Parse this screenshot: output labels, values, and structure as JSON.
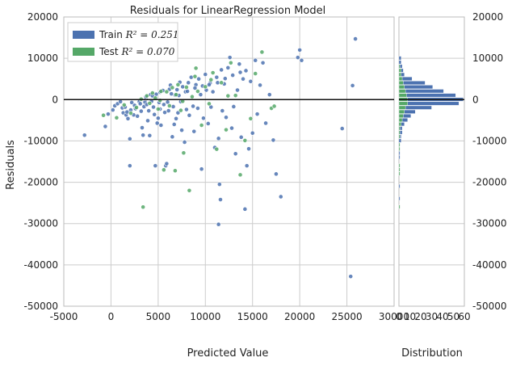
{
  "chart_data": {
    "type": "scatter",
    "title": "Residuals for LinearRegression Model",
    "xlabel": "Predicted Value",
    "ylabel": "Residuals",
    "xlim": [
      -5000,
      30000
    ],
    "ylim": [
      -50000,
      20000
    ],
    "x_ticks": [
      -5000,
      0,
      5000,
      10000,
      15000,
      20000,
      25000,
      30000
    ],
    "y_ticks": [
      -50000,
      -40000,
      -30000,
      -20000,
      -10000,
      0,
      10000,
      20000
    ],
    "grid": true,
    "legend_position": "top-left",
    "legend": [
      {
        "label": "Train",
        "r2_text": "R² = 0.251",
        "color": "#4c72b0"
      },
      {
        "label": "Test",
        "r2_text": "R² = 0.070",
        "color": "#55a868"
      }
    ],
    "zero_line": 0,
    "series": [
      {
        "name": "Train",
        "color": "#4c72b0",
        "points": [
          [
            -2800,
            -8600
          ],
          [
            -600,
            -6500
          ],
          [
            -300,
            -3500
          ],
          [
            200,
            -2500
          ],
          [
            400,
            -1500
          ],
          [
            700,
            -1000
          ],
          [
            1000,
            -500
          ],
          [
            1200,
            -2000
          ],
          [
            1300,
            -3200
          ],
          [
            1500,
            -1800
          ],
          [
            1600,
            -3700
          ],
          [
            1800,
            -4600
          ],
          [
            2000,
            -9500
          ],
          [
            2000,
            -16000
          ],
          [
            2100,
            -2500
          ],
          [
            2200,
            -700
          ],
          [
            2500,
            -1400
          ],
          [
            2600,
            -2200
          ],
          [
            2800,
            -4000
          ],
          [
            3000,
            -500
          ],
          [
            3100,
            -1000
          ],
          [
            3200,
            -2800
          ],
          [
            3300,
            -6800
          ],
          [
            3400,
            -8600
          ],
          [
            3500,
            -1700
          ],
          [
            3600,
            -600
          ],
          [
            3700,
            200
          ],
          [
            3800,
            -1200
          ],
          [
            4000,
            -2700
          ],
          [
            4100,
            -8700
          ],
          [
            4200,
            1200
          ],
          [
            4300,
            -400
          ],
          [
            4500,
            -1800
          ],
          [
            4600,
            -3600
          ],
          [
            4700,
            -16000
          ],
          [
            4800,
            1300
          ],
          [
            5000,
            -4500
          ],
          [
            5100,
            -700
          ],
          [
            5200,
            -2300
          ],
          [
            5300,
            -6200
          ],
          [
            5500,
            2200
          ],
          [
            5600,
            -1200
          ],
          [
            5700,
            -3100
          ],
          [
            5800,
            -16000
          ],
          [
            5900,
            -15500
          ],
          [
            6000,
            -600
          ],
          [
            6100,
            -2700
          ],
          [
            6200,
            2500
          ],
          [
            6300,
            3500
          ],
          [
            6500,
            -9000
          ],
          [
            6600,
            -1700
          ],
          [
            6800,
            1100
          ],
          [
            6900,
            -4600
          ],
          [
            7000,
            2400
          ],
          [
            7100,
            -3200
          ],
          [
            7300,
            4200
          ],
          [
            7400,
            -500
          ],
          [
            7500,
            -7400
          ],
          [
            7600,
            3100
          ],
          [
            7800,
            -10300
          ],
          [
            7900,
            1900
          ],
          [
            8000,
            -2400
          ],
          [
            8200,
            4100
          ],
          [
            8300,
            -3800
          ],
          [
            8500,
            5400
          ],
          [
            8700,
            -1600
          ],
          [
            8800,
            -7700
          ],
          [
            9000,
            3600
          ],
          [
            9200,
            -2100
          ],
          [
            9300,
            5000
          ],
          [
            9500,
            1200
          ],
          [
            9600,
            -16800
          ],
          [
            9800,
            -4500
          ],
          [
            10000,
            6100
          ],
          [
            10100,
            2300
          ],
          [
            10300,
            -5800
          ],
          [
            10500,
            4000
          ],
          [
            10600,
            -1800
          ],
          [
            10800,
            1900
          ],
          [
            11000,
            -11600
          ],
          [
            11200,
            5400
          ],
          [
            11400,
            -9400
          ],
          [
            11500,
            -20500
          ],
          [
            11600,
            -24200
          ],
          [
            11700,
            7200
          ],
          [
            11800,
            -2700
          ],
          [
            12000,
            3800
          ],
          [
            12200,
            -4300
          ],
          [
            12400,
            7700
          ],
          [
            12600,
            10200
          ],
          [
            12800,
            -6900
          ],
          [
            13000,
            -1700
          ],
          [
            13200,
            -13100
          ],
          [
            13400,
            2300
          ],
          [
            13600,
            8600
          ],
          [
            13800,
            -9100
          ],
          [
            14000,
            5000
          ],
          [
            14200,
            -26500
          ],
          [
            14400,
            -16000
          ],
          [
            14600,
            -11900
          ],
          [
            14800,
            4400
          ],
          [
            15000,
            -8100
          ],
          [
            15300,
            9500
          ],
          [
            15500,
            -3500
          ],
          [
            15800,
            3500
          ],
          [
            16100,
            8900
          ],
          [
            16400,
            -5700
          ],
          [
            16800,
            1200
          ],
          [
            17200,
            -9800
          ],
          [
            17500,
            -18000
          ],
          [
            18000,
            -23500
          ],
          [
            11400,
            -30200
          ],
          [
            20000,
            12000
          ],
          [
            20200,
            9500
          ],
          [
            19800,
            10200
          ],
          [
            24500,
            -7000
          ],
          [
            25400,
            -42800
          ],
          [
            25600,
            3400
          ],
          [
            25900,
            14700
          ],
          [
            3700,
            700
          ],
          [
            4400,
            900
          ],
          [
            5200,
            1800
          ],
          [
            6400,
            1400
          ],
          [
            7200,
            1000
          ],
          [
            8100,
            2000
          ],
          [
            8900,
            2800
          ],
          [
            9700,
            3300
          ],
          [
            10400,
            3600
          ],
          [
            11300,
            4100
          ],
          [
            12100,
            5100
          ],
          [
            12900,
            5900
          ],
          [
            13700,
            6600
          ],
          [
            14300,
            7000
          ],
          [
            1700,
            -3000
          ],
          [
            2400,
            -3700
          ],
          [
            3900,
            -5100
          ],
          [
            4900,
            -5700
          ],
          [
            6700,
            -6000
          ]
        ]
      },
      {
        "name": "Test",
        "color": "#55a868",
        "points": [
          [
            -800,
            -3800
          ],
          [
            600,
            -4400
          ],
          [
            1400,
            -1300
          ],
          [
            2100,
            -3300
          ],
          [
            2700,
            -1900
          ],
          [
            3200,
            100
          ],
          [
            3400,
            -26000
          ],
          [
            3800,
            900
          ],
          [
            4100,
            -900
          ],
          [
            4400,
            1600
          ],
          [
            4700,
            400
          ],
          [
            5000,
            -2300
          ],
          [
            5300,
            2000
          ],
          [
            5600,
            -17000
          ],
          [
            5900,
            1900
          ],
          [
            6200,
            -1500
          ],
          [
            6500,
            2900
          ],
          [
            6800,
            -17200
          ],
          [
            7100,
            3600
          ],
          [
            7400,
            -2600
          ],
          [
            7700,
            -12900
          ],
          [
            8000,
            3000
          ],
          [
            8300,
            -22000
          ],
          [
            8600,
            700
          ],
          [
            8900,
            5600
          ],
          [
            9200,
            2000
          ],
          [
            9600,
            -6200
          ],
          [
            10000,
            3100
          ],
          [
            10400,
            -1000
          ],
          [
            10800,
            6500
          ],
          [
            11200,
            -12000
          ],
          [
            11700,
            4100
          ],
          [
            12200,
            -7300
          ],
          [
            12700,
            8900
          ],
          [
            13200,
            1000
          ],
          [
            13700,
            -18200
          ],
          [
            14200,
            -9900
          ],
          [
            14800,
            -4600
          ],
          [
            15300,
            6300
          ],
          [
            16000,
            11500
          ],
          [
            17000,
            -2100
          ],
          [
            17300,
            -1600
          ],
          [
            9000,
            7600
          ],
          [
            10600,
            4800
          ],
          [
            5200,
            -200
          ],
          [
            6900,
            1200
          ],
          [
            7600,
            -400
          ],
          [
            12400,
            900
          ]
        ]
      }
    ],
    "histogram": {
      "xlabel": "Distribution",
      "x_ticks": [
        0,
        10,
        20,
        30,
        40,
        50,
        60
      ],
      "x_tick_labels": [
        "0",
        "10",
        "20",
        "30",
        "40",
        "50",
        "60"
      ],
      "xlim": [
        0,
        60
      ],
      "bin_width": 1000,
      "bins": [
        {
          "y": 10000,
          "train": 2,
          "test": 0
        },
        {
          "y": 9000,
          "train": 2,
          "test": 0
        },
        {
          "y": 8000,
          "train": 3,
          "test": 1
        },
        {
          "y": 7000,
          "train": 4,
          "test": 2
        },
        {
          "y": 6000,
          "train": 5,
          "test": 2
        },
        {
          "y": 5000,
          "train": 12,
          "test": 3
        },
        {
          "y": 4000,
          "train": 24,
          "test": 4
        },
        {
          "y": 3000,
          "train": 31,
          "test": 5
        },
        {
          "y": 2000,
          "train": 41,
          "test": 6
        },
        {
          "y": 1000,
          "train": 52,
          "test": 7
        },
        {
          "y": 0,
          "train": 59,
          "test": 8
        },
        {
          "y": -1000,
          "train": 55,
          "test": 8
        },
        {
          "y": -2000,
          "train": 30,
          "test": 6
        },
        {
          "y": -3000,
          "train": 15,
          "test": 5
        },
        {
          "y": -4000,
          "train": 11,
          "test": 4
        },
        {
          "y": -5000,
          "train": 8,
          "test": 3
        },
        {
          "y": -6000,
          "train": 5,
          "test": 2
        },
        {
          "y": -7000,
          "train": 3,
          "test": 1
        },
        {
          "y": -8000,
          "train": 3,
          "test": 1
        },
        {
          "y": -9000,
          "train": 2,
          "test": 1
        },
        {
          "y": -10000,
          "train": 2,
          "test": 0
        },
        {
          "y": -11000,
          "train": 1,
          "test": 1
        },
        {
          "y": -12000,
          "train": 1,
          "test": 1
        },
        {
          "y": -13000,
          "train": 1,
          "test": 0
        },
        {
          "y": -14000,
          "train": 1,
          "test": 0
        },
        {
          "y": -16000,
          "train": 1,
          "test": 1
        },
        {
          "y": -17000,
          "train": 1,
          "test": 1
        },
        {
          "y": -18000,
          "train": 1,
          "test": 1
        },
        {
          "y": -21000,
          "train": 1,
          "test": 0
        },
        {
          "y": -24000,
          "train": 1,
          "test": 0
        },
        {
          "y": -26000,
          "train": 1,
          "test": 1
        }
      ]
    }
  }
}
